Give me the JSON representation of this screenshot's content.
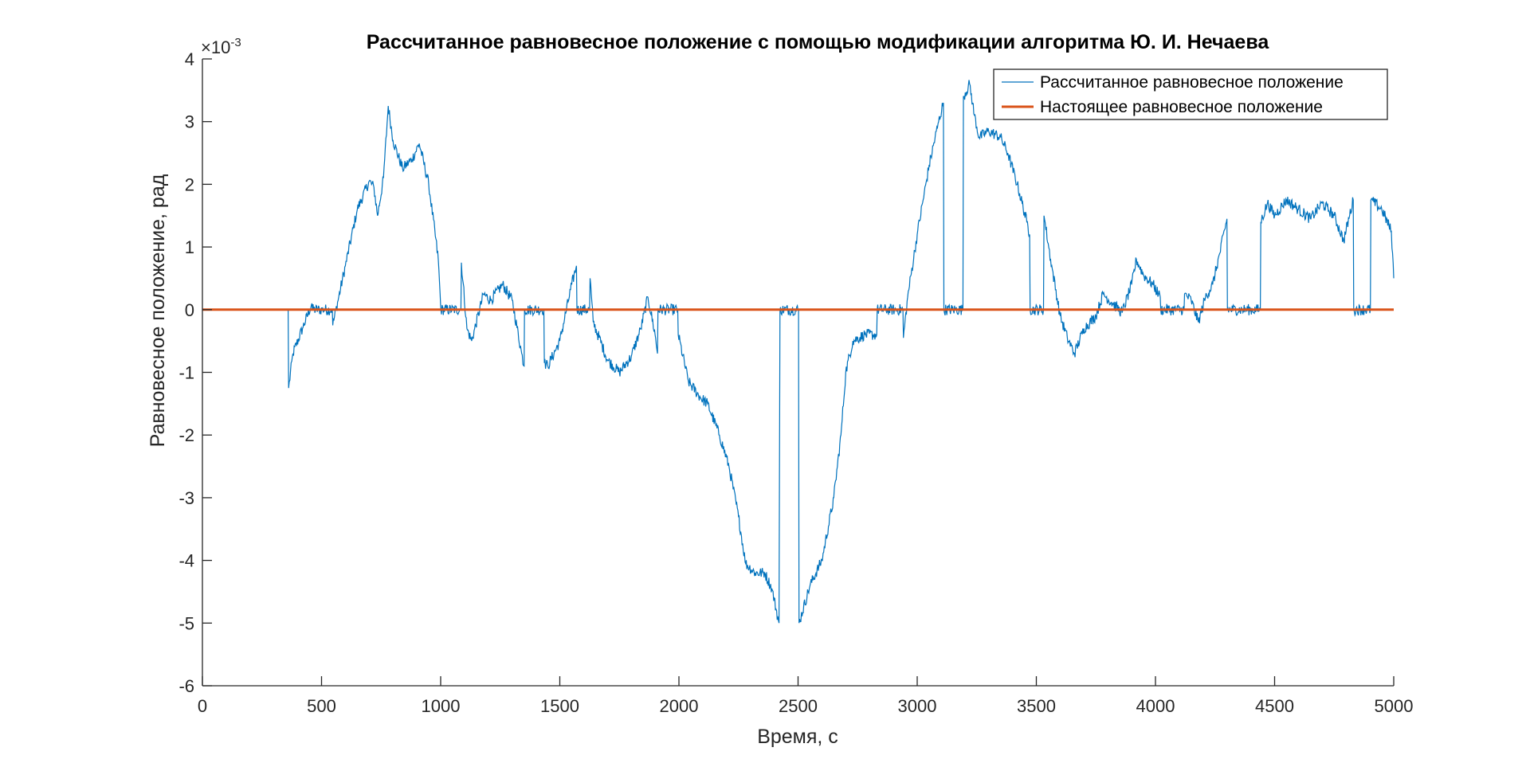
{
  "chart_data": {
    "type": "line",
    "title": "Рассчитанное равновесное положение с помощью модификации алгоритма Ю. И. Нечаева",
    "xlabel": "Время, с",
    "ylabel": "Равновесное положение, рад",
    "y_exponent_label": "×10",
    "y_exponent_power": "-3",
    "xlim": [
      0,
      5000
    ],
    "ylim": [
      -6,
      4
    ],
    "x_ticks": [
      0,
      500,
      1000,
      1500,
      2000,
      2500,
      3000,
      3500,
      4000,
      4500,
      5000
    ],
    "x_tick_labels": [
      "0",
      "500",
      "1000",
      "1500",
      "2000",
      "2500",
      "3000",
      "3500",
      "4000",
      "4500",
      "5000"
    ],
    "y_ticks": [
      -6,
      -5,
      -4,
      -3,
      -2,
      -1,
      0,
      1,
      2,
      3,
      4
    ],
    "y_tick_labels": [
      "-6",
      "-5",
      "-4",
      "-3",
      "-2",
      "-1",
      "0",
      "1",
      "2",
      "3",
      "4"
    ],
    "grid": false,
    "legend_position": "top-right",
    "series": [
      {
        "name": "Рассчитанное равновесное положение",
        "color": "#0072BD",
        "noise_amplitude": 0.09,
        "points": [
          [
            360,
            0
          ],
          [
            362,
            -1.25
          ],
          [
            380,
            -0.7
          ],
          [
            420,
            -0.3
          ],
          [
            460,
            0.1
          ],
          [
            462,
            0
          ],
          [
            545,
            0
          ],
          [
            547,
            -0.25
          ],
          [
            600,
            0.7
          ],
          [
            650,
            1.6
          ],
          [
            700,
            2.05
          ],
          [
            720,
            1.95
          ],
          [
            735,
            1.5
          ],
          [
            760,
            2.1
          ],
          [
            780,
            3.25
          ],
          [
            800,
            2.7
          ],
          [
            840,
            2.25
          ],
          [
            880,
            2.4
          ],
          [
            910,
            2.65
          ],
          [
            950,
            2.0
          ],
          [
            990,
            0.8
          ],
          [
            1000,
            0.05
          ],
          [
            1001,
            0
          ],
          [
            1085,
            0
          ],
          [
            1087,
            0.75
          ],
          [
            1110,
            -0.3
          ],
          [
            1130,
            -0.5
          ],
          [
            1180,
            0.25
          ],
          [
            1210,
            0.15
          ],
          [
            1260,
            0.4
          ],
          [
            1300,
            0.15
          ],
          [
            1340,
            -0.7
          ],
          [
            1350,
            -0.9
          ],
          [
            1352,
            0
          ],
          [
            1433,
            0
          ],
          [
            1435,
            -0.85
          ],
          [
            1450,
            -0.9
          ],
          [
            1500,
            -0.5
          ],
          [
            1550,
            0.4
          ],
          [
            1570,
            0.7
          ],
          [
            1572,
            0
          ],
          [
            1625,
            0
          ],
          [
            1627,
            0.5
          ],
          [
            1640,
            -0.2
          ],
          [
            1700,
            -0.8
          ],
          [
            1750,
            -1.0
          ],
          [
            1800,
            -0.75
          ],
          [
            1840,
            -0.3
          ],
          [
            1870,
            0.2
          ],
          [
            1900,
            -0.4
          ],
          [
            1910,
            -0.7
          ],
          [
            1912,
            0
          ],
          [
            1995,
            0
          ],
          [
            1997,
            -0.4
          ],
          [
            2040,
            -1.15
          ],
          [
            2090,
            -1.4
          ],
          [
            2120,
            -1.5
          ],
          [
            2170,
            -2.0
          ],
          [
            2210,
            -2.5
          ],
          [
            2250,
            -3.3
          ],
          [
            2280,
            -4.05
          ],
          [
            2320,
            -4.2
          ],
          [
            2360,
            -4.2
          ],
          [
            2390,
            -4.45
          ],
          [
            2420,
            -5.0
          ],
          [
            2424,
            0
          ],
          [
            2502,
            0
          ],
          [
            2504,
            -5.0
          ],
          [
            2550,
            -4.4
          ],
          [
            2600,
            -4.0
          ],
          [
            2650,
            -3.0
          ],
          [
            2680,
            -2.0
          ],
          [
            2700,
            -1.0
          ],
          [
            2730,
            -0.5
          ],
          [
            2780,
            -0.4
          ],
          [
            2830,
            -0.4
          ],
          [
            2832,
            0
          ],
          [
            2940,
            0
          ],
          [
            2942,
            -0.45
          ],
          [
            2960,
            0.2
          ],
          [
            3000,
            1.2
          ],
          [
            3050,
            2.3
          ],
          [
            3090,
            3.0
          ],
          [
            3110,
            3.3
          ],
          [
            3112,
            0
          ],
          [
            3192,
            0
          ],
          [
            3194,
            3.4
          ],
          [
            3220,
            3.6
          ],
          [
            3240,
            3.1
          ],
          [
            3260,
            2.75
          ],
          [
            3300,
            2.85
          ],
          [
            3350,
            2.75
          ],
          [
            3380,
            2.5
          ],
          [
            3420,
            2.0
          ],
          [
            3460,
            1.4
          ],
          [
            3472,
            1.2
          ],
          [
            3474,
            0
          ],
          [
            3530,
            0
          ],
          [
            3532,
            1.5
          ],
          [
            3560,
            0.8
          ],
          [
            3600,
            -0.1
          ],
          [
            3630,
            -0.45
          ],
          [
            3660,
            -0.7
          ],
          [
            3700,
            -0.3
          ],
          [
            3750,
            -0.1
          ],
          [
            3780,
            0.25
          ],
          [
            3820,
            0.1
          ],
          [
            3860,
            -0.05
          ],
          [
            3900,
            0.4
          ],
          [
            3920,
            0.8
          ],
          [
            3950,
            0.55
          ],
          [
            3990,
            0.4
          ],
          [
            4020,
            0.2
          ],
          [
            4022,
            0
          ],
          [
            4120,
            0
          ],
          [
            4122,
            0.25
          ],
          [
            4150,
            0.15
          ],
          [
            4180,
            -0.2
          ],
          [
            4210,
            0.2
          ],
          [
            4240,
            0.4
          ],
          [
            4270,
            0.9
          ],
          [
            4300,
            1.45
          ],
          [
            4302,
            0
          ],
          [
            4440,
            0
          ],
          [
            4442,
            1.4
          ],
          [
            4470,
            1.7
          ],
          [
            4500,
            1.5
          ],
          [
            4550,
            1.75
          ],
          [
            4600,
            1.6
          ],
          [
            4650,
            1.45
          ],
          [
            4700,
            1.7
          ],
          [
            4750,
            1.5
          ],
          [
            4790,
            1.1
          ],
          [
            4830,
            1.75
          ],
          [
            4832,
            0
          ],
          [
            4902,
            0
          ],
          [
            4904,
            1.75
          ],
          [
            4950,
            1.6
          ],
          [
            4990,
            1.25
          ],
          [
            5000,
            0.5
          ]
        ]
      },
      {
        "name": "Настоящее равновесное положение",
        "color": "#D95319",
        "points": [
          [
            0,
            0
          ],
          [
            5000,
            0
          ]
        ]
      }
    ]
  }
}
